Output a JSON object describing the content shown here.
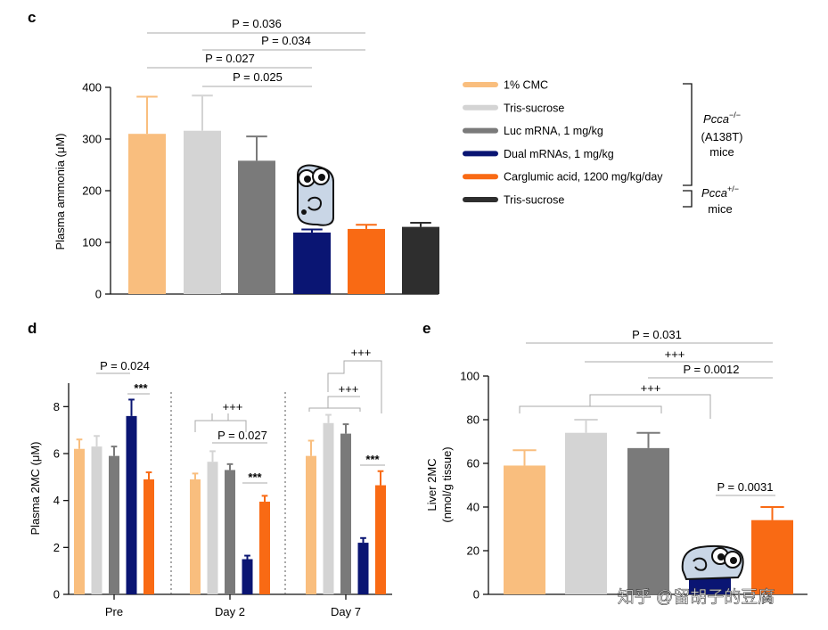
{
  "colors": {
    "cmc": "#F9BE7E",
    "tris_sucrose": "#D4D4D4",
    "luc": "#7A7A7A",
    "dual": "#0A1573",
    "carglumic": "#F96A14",
    "tris_het": "#2E2E2E",
    "bracket": "#A8A8A8"
  },
  "watermark": "知乎 @留胡子的豆腐",
  "chart_data": [
    {
      "panel": "c",
      "type": "bar",
      "ylabel": "Plasma ammonia (μM)",
      "ylim": [
        0,
        400
      ],
      "yticks": [
        "0",
        "100",
        "200",
        "300",
        "400"
      ],
      "series": [
        {
          "name": "1% CMC",
          "value": 310,
          "err": 382
        },
        {
          "name": "Tris-sucrose",
          "value": 316,
          "err": 384
        },
        {
          "name": "Luc mRNA, 1 mg/kg",
          "value": 258,
          "err": 305
        },
        {
          "name": "Dual mRNAs, 1 mg/kg",
          "value": 119,
          "err": 125
        },
        {
          "name": "Carglumic acid, 1200 mg/kg/day",
          "value": 126,
          "err": 134
        },
        {
          "name": "Tris-sucrose",
          "value": 130,
          "err": 138
        }
      ],
      "annotations": [
        {
          "label": "P = 0.036",
          "from": 0,
          "to": 4
        },
        {
          "label": "P = 0.034",
          "from": 1,
          "to": 4
        },
        {
          "label": "P = 0.027",
          "from": 0,
          "to": 3
        },
        {
          "label": "P = 0.025",
          "from": 2,
          "to": 3
        }
      ]
    },
    {
      "panel": "d",
      "type": "bar",
      "ylabel": "Plasma 2MC (μM)",
      "ylim": [
        0,
        9
      ],
      "yticks": [
        "0",
        "2",
        "4",
        "6",
        "8"
      ],
      "categories": [
        "Pre",
        "Day 2",
        "Day 7"
      ],
      "series": [
        {
          "name": "1% CMC",
          "values": [
            6.2,
            4.9,
            5.9
          ],
          "err": [
            6.6,
            5.15,
            6.55
          ]
        },
        {
          "name": "Tris-sucrose",
          "values": [
            6.3,
            5.65,
            7.3
          ],
          "err": [
            6.75,
            6.1,
            7.65
          ]
        },
        {
          "name": "Luc mRNA, 1 mg/kg",
          "values": [
            5.9,
            5.3,
            6.85
          ],
          "err": [
            6.3,
            5.55,
            7.25
          ]
        },
        {
          "name": "Dual mRNAs, 1 mg/kg",
          "values": [
            7.6,
            1.5,
            2.2
          ],
          "err": [
            8.3,
            1.65,
            2.4
          ]
        },
        {
          "name": "Carglumic acid, 1200 mg/kg/day",
          "values": [
            4.9,
            3.95,
            4.65
          ],
          "err": [
            5.2,
            4.2,
            5.25
          ]
        }
      ],
      "annotations": [
        {
          "label": "P = 0.024",
          "group": 0
        },
        {
          "label": "***",
          "group": 0
        },
        {
          "label": "+++",
          "group": 1
        },
        {
          "label": "P = 0.027",
          "group": 1
        },
        {
          "label": "***",
          "group": 1
        },
        {
          "label": "+++",
          "group": 2,
          "level": "top"
        },
        {
          "label": "+++",
          "group": 2,
          "level": "middle"
        },
        {
          "label": "***",
          "group": 2
        }
      ]
    },
    {
      "panel": "e",
      "type": "bar",
      "ylabel_line1": "Liver 2MC",
      "ylabel_line2": "(nmol/g tissue)",
      "ylim": [
        0,
        100
      ],
      "yticks": [
        "0",
        "20",
        "40",
        "60",
        "80",
        "100"
      ],
      "series": [
        {
          "name": "1% CMC",
          "value": 59,
          "err": 66
        },
        {
          "name": "Tris-sucrose",
          "value": 74,
          "err": 80
        },
        {
          "name": "Luc mRNA, 1 mg/kg",
          "value": 67,
          "err": 74
        },
        {
          "name": "Dual mRNAs, 1 mg/kg",
          "value": 12,
          "err": 15
        },
        {
          "name": "Carglumic acid, 1200 mg/kg/day",
          "value": 34,
          "err": 40
        }
      ],
      "annotations": [
        {
          "label": "P = 0.031"
        },
        {
          "label": "+++",
          "level": "upper"
        },
        {
          "label": "P = 0.0012"
        },
        {
          "label": "+++",
          "level": "lower"
        },
        {
          "label": "P = 0.0031"
        }
      ]
    }
  ],
  "legend": {
    "items": [
      {
        "label": "1% CMC",
        "color_key": "cmc"
      },
      {
        "label": "Tris-sucrose",
        "color_key": "tris_sucrose"
      },
      {
        "label": "Luc mRNA, 1 mg/kg",
        "color_key": "luc"
      },
      {
        "label": "Dual mRNAs, 1 mg/kg",
        "color_key": "dual"
      },
      {
        "label": "Carglumic acid, 1200 mg/kg/day",
        "color_key": "carglumic"
      },
      {
        "label": "Tris-sucrose",
        "color_key": "tris_het"
      }
    ],
    "group1": {
      "gene": "Pcca",
      "sup": "−/−",
      "line2": "(A138T)",
      "line3": "mice"
    },
    "group2": {
      "gene": "Pcca",
      "sup": "+/−",
      "line2": "mice"
    }
  },
  "panel_labels": {
    "c": "c",
    "d": "d",
    "e": "e"
  }
}
